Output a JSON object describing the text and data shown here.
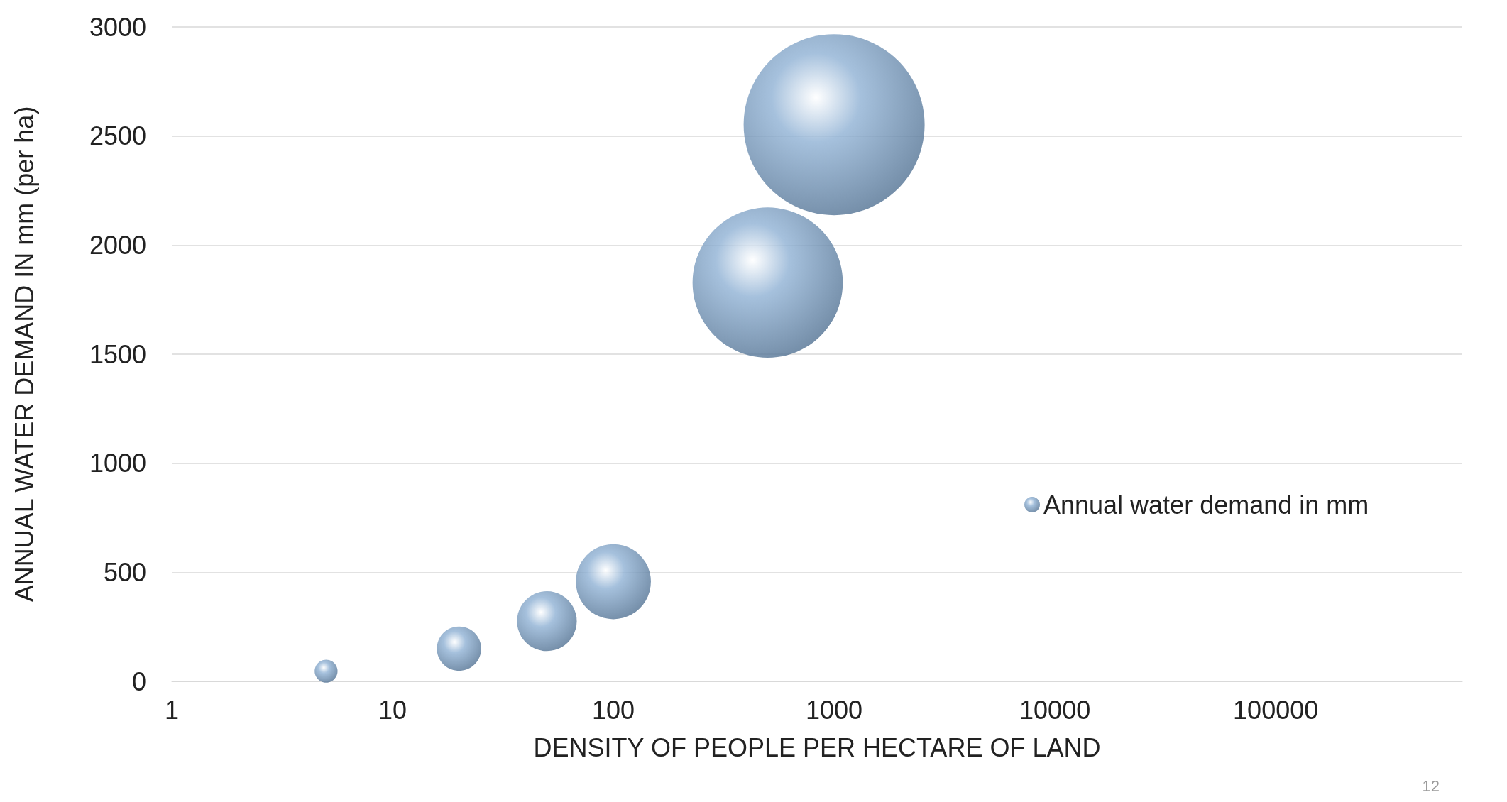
{
  "chart_data": {
    "type": "bubble",
    "xlabel": "DENSITY OF PEOPLE PER HECTARE OF LAND",
    "ylabel": "ANNUAL WATER DEMAND IN mm (per ha)",
    "x": [
      5,
      20,
      50,
      100,
      500,
      1000
    ],
    "series": [
      {
        "name": "Annual water demand in mm",
        "color": "#8fb1d4",
        "values": [
          47,
          150,
          276,
          457,
          1828,
          2552
        ],
        "sizes": [
          0.016,
          0.06,
          0.109,
          0.172,
          0.689,
          1
        ]
      }
    ],
    "log": "x",
    "xlim": [
      1,
      700000
    ],
    "xticks": [
      1,
      10,
      100,
      1000,
      10000,
      100000
    ],
    "ylim": [
      0,
      3000
    ],
    "yticks": [
      0,
      500,
      1000,
      1500,
      2000,
      2500,
      3000
    ],
    "grid": "y",
    "legend": "right",
    "annotations": [
      "12"
    ]
  }
}
